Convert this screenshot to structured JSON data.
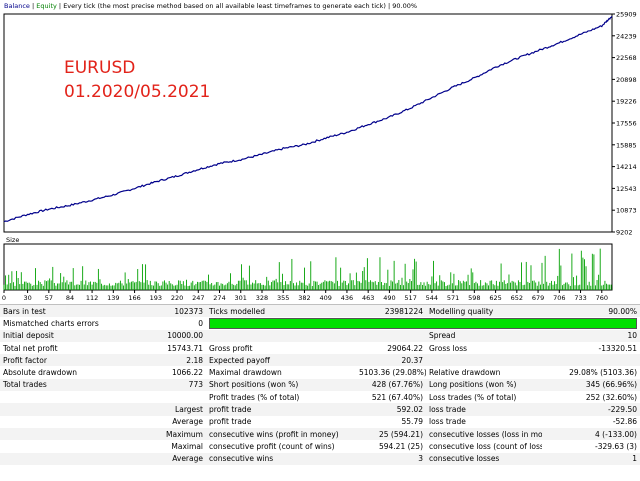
{
  "header": {
    "balance_label": "Balance",
    "equity_label": "Equity",
    "description": "Every tick (the most precise method based on all available least timeframes to generate each tick)",
    "quality": "90.00%"
  },
  "annotation": {
    "line1": "EURUSD",
    "line2": "01.2020/05.2021"
  },
  "colors": {
    "annotation_text": "#e2231a",
    "balance_line": "#00008b",
    "size_bars": "#00a000",
    "quality_bar": "#00e000"
  },
  "chart_data": {
    "type": "line",
    "x_ticks": [
      "0",
      "30",
      "57",
      "84",
      "112",
      "139",
      "166",
      "193",
      "220",
      "247",
      "274",
      "301",
      "328",
      "355",
      "382",
      "409",
      "436",
      "463",
      "490",
      "517",
      "544",
      "571",
      "598",
      "625",
      "652",
      "679",
      "706",
      "733",
      "760"
    ],
    "y_ticks": [
      "25909",
      "24239",
      "22568",
      "20898",
      "19226",
      "17556",
      "15885",
      "14214",
      "12543",
      "10873",
      "9202"
    ],
    "ylim": [
      9202,
      25909
    ],
    "series": [
      {
        "name": "Balance",
        "x": [
          0,
          30,
          57,
          84,
          112,
          139,
          166,
          193,
          220,
          247,
          274,
          301,
          328,
          355,
          382,
          409,
          436,
          463,
          490,
          517,
          544,
          571,
          598,
          625,
          652,
          679,
          706,
          733,
          760,
          773
        ],
        "values": [
          10000,
          10550,
          10950,
          11250,
          11650,
          12050,
          12550,
          13050,
          13500,
          14000,
          14450,
          14750,
          15150,
          15600,
          15900,
          16400,
          16850,
          17450,
          18000,
          18700,
          19500,
          20300,
          21000,
          21850,
          22500,
          23100,
          23700,
          24350,
          25000,
          25743.71
        ]
      }
    ],
    "size_label": "Size"
  },
  "report": {
    "rows": [
      [
        "Bars in test",
        "102373",
        "Ticks modelled",
        "23981224",
        "Modelling quality",
        "90.00%"
      ],
      [
        "Mismatched charts errors",
        "0",
        "",
        "",
        "",
        ""
      ],
      [
        "Initial deposit",
        "10000.00",
        "",
        "",
        "Spread",
        "10"
      ],
      [
        "Total net profit",
        "15743.71",
        "Gross profit",
        "29064.22",
        "Gross loss",
        "-13320.51"
      ],
      [
        "Profit factor",
        "2.18",
        "Expected payoff",
        "20.37",
        "",
        ""
      ],
      [
        "Absolute drawdown",
        "1066.22",
        "Maximal drawdown",
        "5103.36 (29.08%)",
        "Relative drawdown",
        "29.08% (5103.36)"
      ],
      [
        "Total trades",
        "773",
        "Short positions (won %)",
        "428 (67.76%)",
        "Long positions (won %)",
        "345 (66.96%)"
      ],
      [
        "",
        "",
        "Profit trades (% of total)",
        "521 (67.40%)",
        "Loss trades (% of total)",
        "252 (32.60%)"
      ],
      [
        "",
        "Largest",
        "profit trade",
        "592.02",
        "loss trade",
        "-229.50"
      ],
      [
        "",
        "Average",
        "profit trade",
        "55.79",
        "loss trade",
        "-52.86"
      ],
      [
        "",
        "Maximum",
        "consecutive wins (profit in money)",
        "25 (594.21)",
        "consecutive losses (loss in money)",
        "4 (-133.00)"
      ],
      [
        "",
        "Maximal",
        "consecutive profit (count of wins)",
        "594.21 (25)",
        "consecutive loss (count of losses)",
        "-329.63 (3)"
      ],
      [
        "",
        "Average",
        "consecutive wins",
        "3",
        "consecutive losses",
        "1"
      ]
    ]
  }
}
